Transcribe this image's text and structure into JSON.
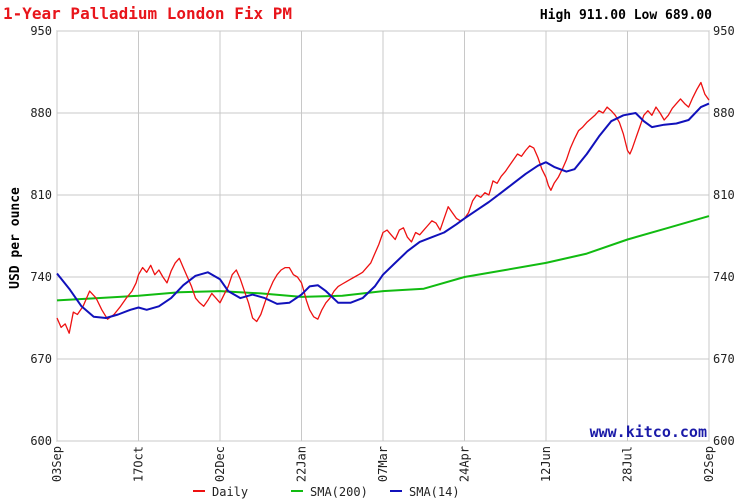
{
  "chart_data": {
    "type": "line",
    "title": "1-Year Palladium London Fix PM",
    "high_low_text": "High 911.00 Low 689.00",
    "high": 911.0,
    "low": 689.0,
    "ylabel": "USD per ounce",
    "ylim": [
      600,
      950
    ],
    "yticks": [
      "950",
      "880",
      "810",
      "740",
      "670",
      "600"
    ],
    "x_ticks": [
      "03Sep",
      "17Oct",
      "02Dec",
      "22Jan",
      "07Mar",
      "24Apr",
      "12Jun",
      "28Jul",
      "02Sep"
    ],
    "grid": true,
    "legend_position": "bottom",
    "watermark": "www.kitco.com",
    "colors": {
      "title": "#e8151b",
      "daily": "#ee1111",
      "sma200": "#11bb11",
      "sma14": "#1111bb",
      "grid": "#c8c8c8",
      "plot_border": "#999999"
    },
    "series": [
      {
        "name": "Daily",
        "color": "#ee1111",
        "x": [
          "03Sep",
          "17Oct",
          "02Dec",
          "22Jan",
          "07Mar",
          "24Apr",
          "12Jun",
          "28Jul",
          "02Sep"
        ],
        "points": [
          [
            0,
            705
          ],
          [
            0.05,
            697
          ],
          [
            0.1,
            700
          ],
          [
            0.15,
            692
          ],
          [
            0.2,
            710
          ],
          [
            0.25,
            708
          ],
          [
            0.32,
            715
          ],
          [
            0.4,
            728
          ],
          [
            0.48,
            722
          ],
          [
            0.55,
            712
          ],
          [
            0.62,
            704
          ],
          [
            0.7,
            708
          ],
          [
            0.78,
            715
          ],
          [
            0.85,
            722
          ],
          [
            0.92,
            728
          ],
          [
            0.97,
            735
          ],
          [
            1.0,
            742
          ],
          [
            1.05,
            748
          ],
          [
            1.1,
            744
          ],
          [
            1.15,
            750
          ],
          [
            1.2,
            742
          ],
          [
            1.25,
            746
          ],
          [
            1.3,
            740
          ],
          [
            1.35,
            735
          ],
          [
            1.4,
            745
          ],
          [
            1.45,
            752
          ],
          [
            1.5,
            756
          ],
          [
            1.55,
            748
          ],
          [
            1.6,
            740
          ],
          [
            1.65,
            732
          ],
          [
            1.7,
            722
          ],
          [
            1.75,
            718
          ],
          [
            1.8,
            715
          ],
          [
            1.85,
            720
          ],
          [
            1.9,
            726
          ],
          [
            1.95,
            722
          ],
          [
            2.0,
            718
          ],
          [
            2.05,
            725
          ],
          [
            2.1,
            732
          ],
          [
            2.15,
            742
          ],
          [
            2.2,
            746
          ],
          [
            2.25,
            738
          ],
          [
            2.3,
            728
          ],
          [
            2.35,
            718
          ],
          [
            2.4,
            705
          ],
          [
            2.45,
            702
          ],
          [
            2.5,
            708
          ],
          [
            2.55,
            718
          ],
          [
            2.6,
            728
          ],
          [
            2.65,
            736
          ],
          [
            2.7,
            742
          ],
          [
            2.75,
            746
          ],
          [
            2.8,
            748
          ],
          [
            2.85,
            748
          ],
          [
            2.9,
            742
          ],
          [
            2.95,
            740
          ],
          [
            3.0,
            735
          ],
          [
            3.03,
            728
          ],
          [
            3.06,
            720
          ],
          [
            3.1,
            712
          ],
          [
            3.15,
            706
          ],
          [
            3.2,
            704
          ],
          [
            3.25,
            712
          ],
          [
            3.3,
            718
          ],
          [
            3.35,
            722
          ],
          [
            3.4,
            728
          ],
          [
            3.45,
            732
          ],
          [
            3.5,
            734
          ],
          [
            3.55,
            736
          ],
          [
            3.6,
            738
          ],
          [
            3.65,
            740
          ],
          [
            3.7,
            742
          ],
          [
            3.75,
            744
          ],
          [
            3.8,
            748
          ],
          [
            3.85,
            752
          ],
          [
            3.9,
            760
          ],
          [
            3.95,
            768
          ],
          [
            4.0,
            778
          ],
          [
            4.05,
            780
          ],
          [
            4.1,
            776
          ],
          [
            4.15,
            772
          ],
          [
            4.2,
            780
          ],
          [
            4.25,
            782
          ],
          [
            4.3,
            774
          ],
          [
            4.35,
            770
          ],
          [
            4.4,
            778
          ],
          [
            4.45,
            776
          ],
          [
            4.5,
            780
          ],
          [
            4.55,
            784
          ],
          [
            4.6,
            788
          ],
          [
            4.65,
            786
          ],
          [
            4.7,
            780
          ],
          [
            4.75,
            790
          ],
          [
            4.8,
            800
          ],
          [
            4.85,
            795
          ],
          [
            4.9,
            790
          ],
          [
            4.95,
            788
          ],
          [
            5.0,
            790
          ],
          [
            5.05,
            795
          ],
          [
            5.1,
            805
          ],
          [
            5.15,
            810
          ],
          [
            5.2,
            808
          ],
          [
            5.25,
            812
          ],
          [
            5.3,
            810
          ],
          [
            5.35,
            822
          ],
          [
            5.4,
            820
          ],
          [
            5.45,
            826
          ],
          [
            5.5,
            830
          ],
          [
            5.55,
            835
          ],
          [
            5.6,
            840
          ],
          [
            5.65,
            845
          ],
          [
            5.7,
            843
          ],
          [
            5.75,
            848
          ],
          [
            5.8,
            852
          ],
          [
            5.85,
            850
          ],
          [
            5.9,
            842
          ],
          [
            5.95,
            832
          ],
          [
            6.0,
            825
          ],
          [
            6.03,
            818
          ],
          [
            6.06,
            814
          ],
          [
            6.1,
            820
          ],
          [
            6.15,
            825
          ],
          [
            6.2,
            832
          ],
          [
            6.25,
            840
          ],
          [
            6.3,
            850
          ],
          [
            6.35,
            858
          ],
          [
            6.4,
            865
          ],
          [
            6.45,
            868
          ],
          [
            6.5,
            872
          ],
          [
            6.55,
            875
          ],
          [
            6.6,
            878
          ],
          [
            6.65,
            882
          ],
          [
            6.7,
            880
          ],
          [
            6.75,
            885
          ],
          [
            6.8,
            882
          ],
          [
            6.85,
            878
          ],
          [
            6.9,
            872
          ],
          [
            6.95,
            862
          ],
          [
            7.0,
            848
          ],
          [
            7.03,
            845
          ],
          [
            7.06,
            850
          ],
          [
            7.1,
            858
          ],
          [
            7.15,
            868
          ],
          [
            7.2,
            878
          ],
          [
            7.25,
            882
          ],
          [
            7.3,
            878
          ],
          [
            7.35,
            885
          ],
          [
            7.4,
            880
          ],
          [
            7.45,
            874
          ],
          [
            7.5,
            878
          ],
          [
            7.55,
            884
          ],
          [
            7.6,
            888
          ],
          [
            7.65,
            892
          ],
          [
            7.7,
            888
          ],
          [
            7.75,
            885
          ],
          [
            7.8,
            893
          ],
          [
            7.85,
            900
          ],
          [
            7.9,
            906
          ],
          [
            7.95,
            896
          ],
          [
            8.0,
            891
          ]
        ]
      },
      {
        "name": "SMA(200)",
        "color": "#11bb11",
        "points": [
          [
            0,
            720
          ],
          [
            0.5,
            722
          ],
          [
            1.0,
            724
          ],
          [
            1.5,
            727
          ],
          [
            2.0,
            728
          ],
          [
            2.5,
            726
          ],
          [
            3.0,
            723
          ],
          [
            3.5,
            724
          ],
          [
            4.0,
            728
          ],
          [
            4.5,
            730
          ],
          [
            5.0,
            740
          ],
          [
            5.5,
            746
          ],
          [
            6.0,
            752
          ],
          [
            6.5,
            760
          ],
          [
            7.0,
            772
          ],
          [
            7.5,
            782
          ],
          [
            8.0,
            792
          ]
        ]
      },
      {
        "name": "SMA(14)",
        "color": "#1111bb",
        "points": [
          [
            0,
            743
          ],
          [
            0.15,
            730
          ],
          [
            0.3,
            715
          ],
          [
            0.45,
            706
          ],
          [
            0.6,
            705
          ],
          [
            0.75,
            708
          ],
          [
            0.9,
            712
          ],
          [
            1.0,
            714
          ],
          [
            1.1,
            712
          ],
          [
            1.25,
            715
          ],
          [
            1.4,
            722
          ],
          [
            1.55,
            733
          ],
          [
            1.7,
            741
          ],
          [
            1.85,
            744
          ],
          [
            2.0,
            738
          ],
          [
            2.1,
            728
          ],
          [
            2.25,
            722
          ],
          [
            2.4,
            725
          ],
          [
            2.55,
            722
          ],
          [
            2.7,
            717
          ],
          [
            2.85,
            718
          ],
          [
            3.0,
            725
          ],
          [
            3.1,
            732
          ],
          [
            3.2,
            733
          ],
          [
            3.3,
            728
          ],
          [
            3.45,
            718
          ],
          [
            3.6,
            718
          ],
          [
            3.75,
            722
          ],
          [
            3.9,
            732
          ],
          [
            4.0,
            742
          ],
          [
            4.15,
            752
          ],
          [
            4.3,
            762
          ],
          [
            4.45,
            770
          ],
          [
            4.6,
            774
          ],
          [
            4.75,
            778
          ],
          [
            4.9,
            785
          ],
          [
            5.0,
            790
          ],
          [
            5.15,
            797
          ],
          [
            5.3,
            804
          ],
          [
            5.45,
            812
          ],
          [
            5.6,
            820
          ],
          [
            5.75,
            828
          ],
          [
            5.9,
            835
          ],
          [
            6.0,
            838
          ],
          [
            6.1,
            834
          ],
          [
            6.25,
            830
          ],
          [
            6.35,
            832
          ],
          [
            6.5,
            845
          ],
          [
            6.65,
            860
          ],
          [
            6.8,
            873
          ],
          [
            6.95,
            878
          ],
          [
            7.1,
            880
          ],
          [
            7.2,
            873
          ],
          [
            7.3,
            868
          ],
          [
            7.45,
            870
          ],
          [
            7.6,
            871
          ],
          [
            7.75,
            874
          ],
          [
            7.9,
            885
          ],
          [
            8.0,
            888
          ]
        ]
      }
    ]
  }
}
